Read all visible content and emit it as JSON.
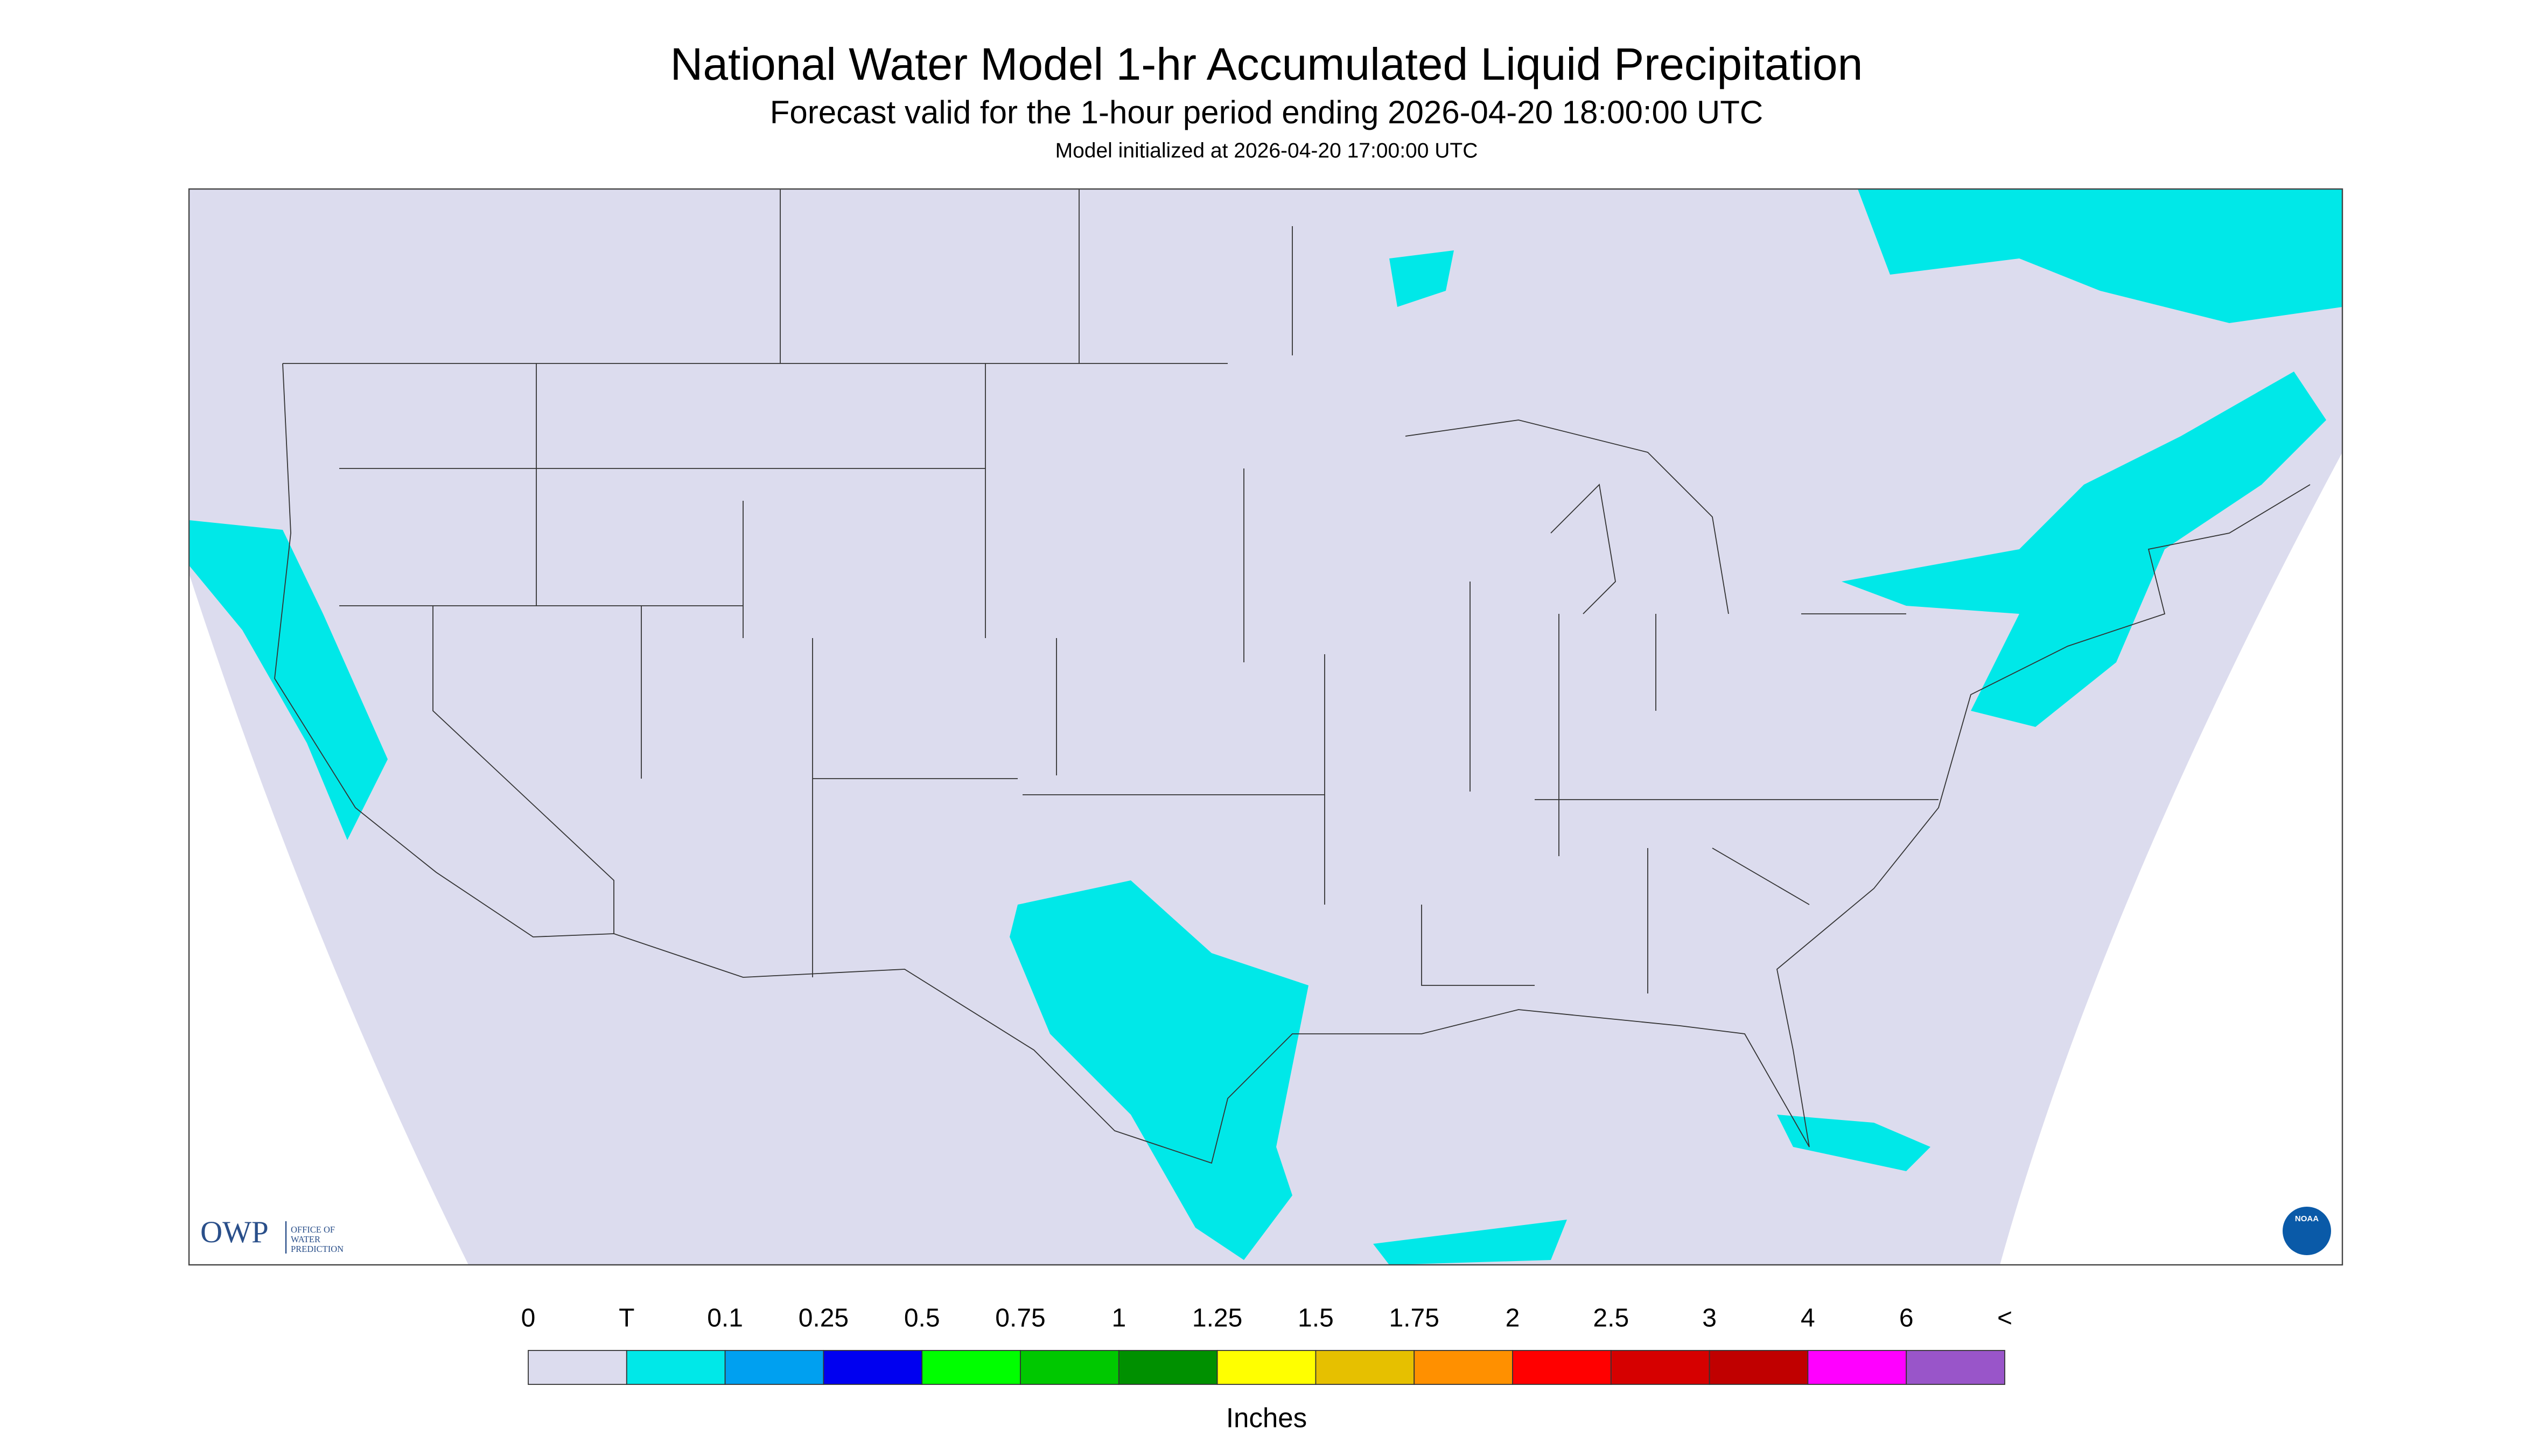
{
  "header": {
    "title": "National Water Model 1-hr Accumulated Liquid Precipitation",
    "subtitle": "Forecast valid for the 1-hour period ending 2026-04-20 18:00:00 UTC",
    "init": "Model initialized at 2026-04-20 17:00:00 UTC"
  },
  "logo": {
    "acronym": "OWP",
    "lines": [
      "OFFICE OF",
      "WATER",
      "PREDICTION"
    ],
    "badge": "NOAA"
  },
  "legend": {
    "labels": [
      "0",
      "T",
      "0.1",
      "0.25",
      "0.5",
      "0.75",
      "1",
      "1.25",
      "1.5",
      "1.75",
      "2",
      "2.5",
      "3",
      "4",
      "6",
      "<"
    ],
    "colors": [
      "#dcdcee",
      "#00e8e8",
      "#00a0f0",
      "#0000f0",
      "#00ff00",
      "#00c800",
      "#009000",
      "#ffff00",
      "#e6c000",
      "#ff9000",
      "#ff0000",
      "#d60000",
      "#c00000",
      "#ff00ff",
      "#9955c9"
    ],
    "unit": "Inches"
  }
}
